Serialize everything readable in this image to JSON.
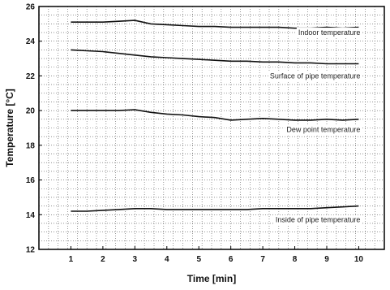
{
  "chart_data": {
    "type": "line",
    "xlabel": "Time [min]",
    "ylabel": "Temperature [°C]",
    "xlim": [
      0,
      10.8
    ],
    "ylim": [
      12,
      26
    ],
    "xticks": [
      1,
      2,
      3,
      4,
      5,
      6,
      7,
      8,
      9,
      10
    ],
    "yticks": [
      12,
      14,
      16,
      18,
      20,
      22,
      24,
      26
    ],
    "grid": true,
    "x": [
      1,
      1.5,
      2,
      2.5,
      3,
      3.5,
      4,
      4.5,
      5,
      5.5,
      6,
      6.5,
      7,
      7.5,
      8,
      8.5,
      9,
      9.5,
      10
    ],
    "series": [
      {
        "name": "Indoor temperature",
        "values": [
          25.1,
          25.1,
          25.1,
          25.15,
          25.2,
          25.0,
          24.95,
          24.9,
          24.85,
          24.85,
          24.8,
          24.8,
          24.8,
          24.8,
          24.75,
          24.75,
          24.8,
          24.75,
          24.8
        ]
      },
      {
        "name": "Surface of pipe temperature",
        "values": [
          23.5,
          23.45,
          23.4,
          23.3,
          23.2,
          23.1,
          23.05,
          23.0,
          22.95,
          22.9,
          22.85,
          22.85,
          22.8,
          22.8,
          22.75,
          22.75,
          22.7,
          22.7,
          22.7
        ]
      },
      {
        "name": "Dew point temperature",
        "values": [
          20.0,
          20.0,
          20.0,
          20.0,
          20.05,
          19.9,
          19.8,
          19.75,
          19.65,
          19.6,
          19.45,
          19.5,
          19.55,
          19.5,
          19.45,
          19.45,
          19.5,
          19.45,
          19.5
        ]
      },
      {
        "name": "Inside of pipe temperature",
        "values": [
          14.2,
          14.2,
          14.25,
          14.3,
          14.35,
          14.35,
          14.3,
          14.3,
          14.3,
          14.3,
          14.3,
          14.3,
          14.35,
          14.35,
          14.35,
          14.35,
          14.4,
          14.45,
          14.5
        ]
      }
    ],
    "labels": [
      {
        "text": "Indoor temperature",
        "x": 10,
        "y": 24.5
      },
      {
        "text": "Surface of pipe temperature",
        "x": 10,
        "y": 22.0
      },
      {
        "text": "Dew point temperature",
        "x": 10,
        "y": 18.9
      },
      {
        "text": "Inside of pipe temperature",
        "x": 10,
        "y": 13.7
      }
    ]
  }
}
